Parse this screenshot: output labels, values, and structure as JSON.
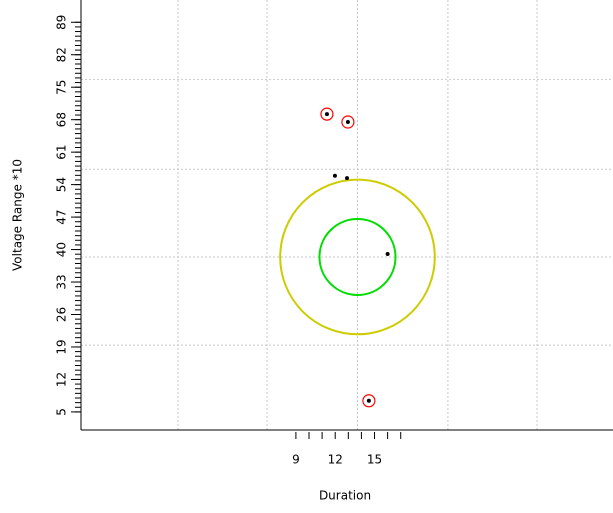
{
  "chart_data": {
    "type": "scatter",
    "x_label": "Duration",
    "y_label": "Voltage Range *10",
    "xlim": [
      -7.4,
      33.2
    ],
    "ylim": [
      1.1,
      93.8
    ],
    "xticks": [
      9,
      12,
      15
    ],
    "xminor": [
      9,
      10,
      11,
      12,
      13,
      14,
      15,
      16,
      17
    ],
    "yticks": [
      5,
      12,
      19,
      26,
      33,
      40,
      47,
      54,
      61,
      68,
      75,
      82,
      89
    ],
    "yminor_step": 1,
    "xgrid": [
      0,
      6.8,
      13.7,
      20.6,
      27.4
    ],
    "ygrid": [
      19.4,
      38.4,
      57.3,
      76.7
    ],
    "x": [
      11.37,
      12.97,
      11.98,
      12.9,
      16.0,
      14.57
    ],
    "y": [
      69.2,
      67.5,
      55.9,
      55.4,
      39.05,
      7.4
    ],
    "flagged": [
      true,
      true,
      false,
      false,
      false,
      true
    ],
    "point_color": "#000000",
    "flag_color": "#ff0000",
    "circles": [
      {
        "center": [
          13.7,
          38.4
        ],
        "radius": 2.9,
        "color": "#00dd00"
      },
      {
        "center": [
          13.7,
          38.4
        ],
        "radius": 5.9,
        "color": "#cccc00"
      }
    ]
  }
}
